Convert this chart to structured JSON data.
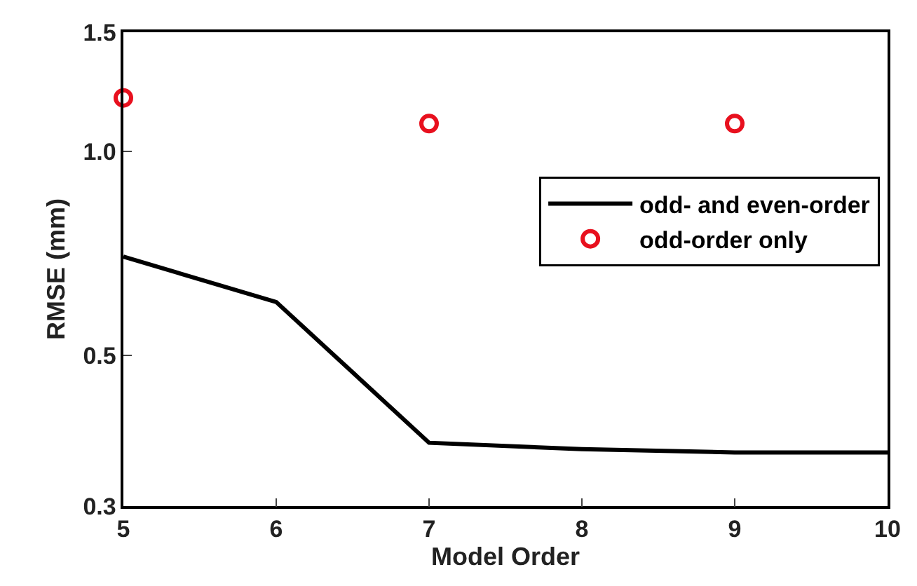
{
  "chart_data": {
    "type": "line",
    "xlabel": "Model Order",
    "ylabel": "RMSE (mm)",
    "x": [
      5,
      6,
      7,
      8,
      9,
      10
    ],
    "series": [
      {
        "name": "odd- and even-order",
        "color": "#000000",
        "marker": "none",
        "values": [
          0.7,
          0.6,
          0.372,
          0.364,
          0.36,
          0.36
        ]
      },
      {
        "name": "odd-order only",
        "color": "#e8101e",
        "type": "scatter",
        "marker": "circle",
        "x": [
          5,
          7,
          9
        ],
        "values": [
          1.2,
          1.1,
          1.1
        ]
      }
    ],
    "log": "y",
    "xlim": [
      5,
      10
    ],
    "xticks": [
      5,
      6,
      7,
      8,
      9,
      10
    ],
    "ylim": [
      0.3,
      1.5
    ],
    "yticks": [
      {
        "value": 0.3,
        "label": "0.3"
      },
      {
        "value": 0.5,
        "label": "0.5"
      },
      {
        "value": 1.0,
        "label": "1.0"
      },
      {
        "value": 1.5,
        "label": "1.5"
      }
    ],
    "legend": "right"
  }
}
